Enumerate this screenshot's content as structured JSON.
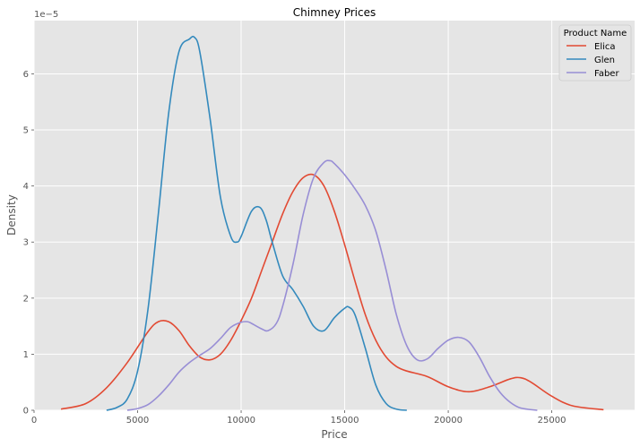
{
  "chart_data": {
    "type": "line",
    "title": "Chimney Prices",
    "xlabel": "Price",
    "ylabel": "Density",
    "y_scale_label": "1e−5",
    "xlim": [
      0,
      29000
    ],
    "ylim": [
      0,
      6.95
    ],
    "x_ticks": [
      0,
      5000,
      10000,
      15000,
      20000,
      25000
    ],
    "x_tick_labels": [
      "0",
      "5000",
      "10000",
      "15000",
      "20000",
      "25000"
    ],
    "y_ticks": [
      0,
      1,
      2,
      3,
      4,
      5,
      6
    ],
    "y_tick_labels": [
      "0",
      "1",
      "2",
      "3",
      "4",
      "5",
      "6"
    ],
    "grid": true,
    "legend": {
      "title": "Product Name",
      "placement": "top-right"
    },
    "series": [
      {
        "name": "Elica",
        "color": "#E24A33",
        "x": [
          1300,
          2500,
          3500,
          4500,
          5500,
          6000,
          6500,
          7000,
          7500,
          8000,
          8500,
          9000,
          9500,
          10000,
          10500,
          11000,
          11500,
          12000,
          12500,
          13000,
          13500,
          14000,
          14500,
          15000,
          15500,
          16000,
          16500,
          17000,
          17500,
          18000,
          19000,
          20000,
          21000,
          22000,
          23000,
          23500,
          24000,
          25000,
          26000,
          27500
        ],
        "y": [
          0.02,
          0.12,
          0.4,
          0.85,
          1.4,
          1.58,
          1.58,
          1.42,
          1.15,
          0.95,
          0.9,
          1.0,
          1.25,
          1.6,
          2.0,
          2.5,
          3.0,
          3.5,
          3.9,
          4.15,
          4.2,
          4.0,
          3.55,
          2.95,
          2.3,
          1.7,
          1.25,
          0.95,
          0.78,
          0.7,
          0.6,
          0.42,
          0.33,
          0.42,
          0.56,
          0.58,
          0.5,
          0.25,
          0.08,
          0.01
        ]
      },
      {
        "name": "Glen",
        "color": "#348ABD",
        "x": [
          3500,
          4000,
          4500,
          5000,
          5500,
          6000,
          6500,
          7000,
          7500,
          7750,
          8000,
          8500,
          9000,
          9500,
          9800,
          10000,
          10500,
          10900,
          11200,
          11500,
          12000,
          12500,
          13000,
          13500,
          14000,
          14500,
          15000,
          15200,
          15500,
          16000,
          16500,
          17000,
          17500,
          18000
        ],
        "y": [
          0.0,
          0.05,
          0.2,
          0.7,
          1.8,
          3.5,
          5.3,
          6.4,
          6.62,
          6.65,
          6.4,
          5.2,
          3.8,
          3.1,
          3.0,
          3.1,
          3.55,
          3.62,
          3.4,
          3.0,
          2.4,
          2.15,
          1.85,
          1.5,
          1.42,
          1.65,
          1.82,
          1.84,
          1.7,
          1.1,
          0.45,
          0.12,
          0.02,
          0.0
        ]
      },
      {
        "name": "Faber",
        "color": "#988ED5",
        "x": [
          4500,
          5000,
          5500,
          6000,
          6500,
          7000,
          7500,
          8000,
          8500,
          9000,
          9500,
          10000,
          10300,
          10500,
          11000,
          11300,
          11700,
          12000,
          12500,
          13000,
          13500,
          14000,
          14300,
          14500,
          15000,
          15500,
          16000,
          16500,
          17000,
          17500,
          18000,
          18500,
          19000,
          19500,
          20000,
          20500,
          21000,
          21500,
          22000,
          22500,
          23000,
          23500,
          24300
        ],
        "y": [
          0.0,
          0.03,
          0.1,
          0.25,
          0.45,
          0.68,
          0.85,
          0.98,
          1.1,
          1.28,
          1.48,
          1.57,
          1.58,
          1.55,
          1.45,
          1.42,
          1.55,
          1.85,
          2.6,
          3.5,
          4.15,
          4.42,
          4.45,
          4.4,
          4.2,
          3.95,
          3.65,
          3.2,
          2.5,
          1.7,
          1.15,
          0.9,
          0.92,
          1.1,
          1.25,
          1.3,
          1.22,
          0.95,
          0.6,
          0.32,
          0.14,
          0.04,
          0.0
        ]
      }
    ]
  }
}
